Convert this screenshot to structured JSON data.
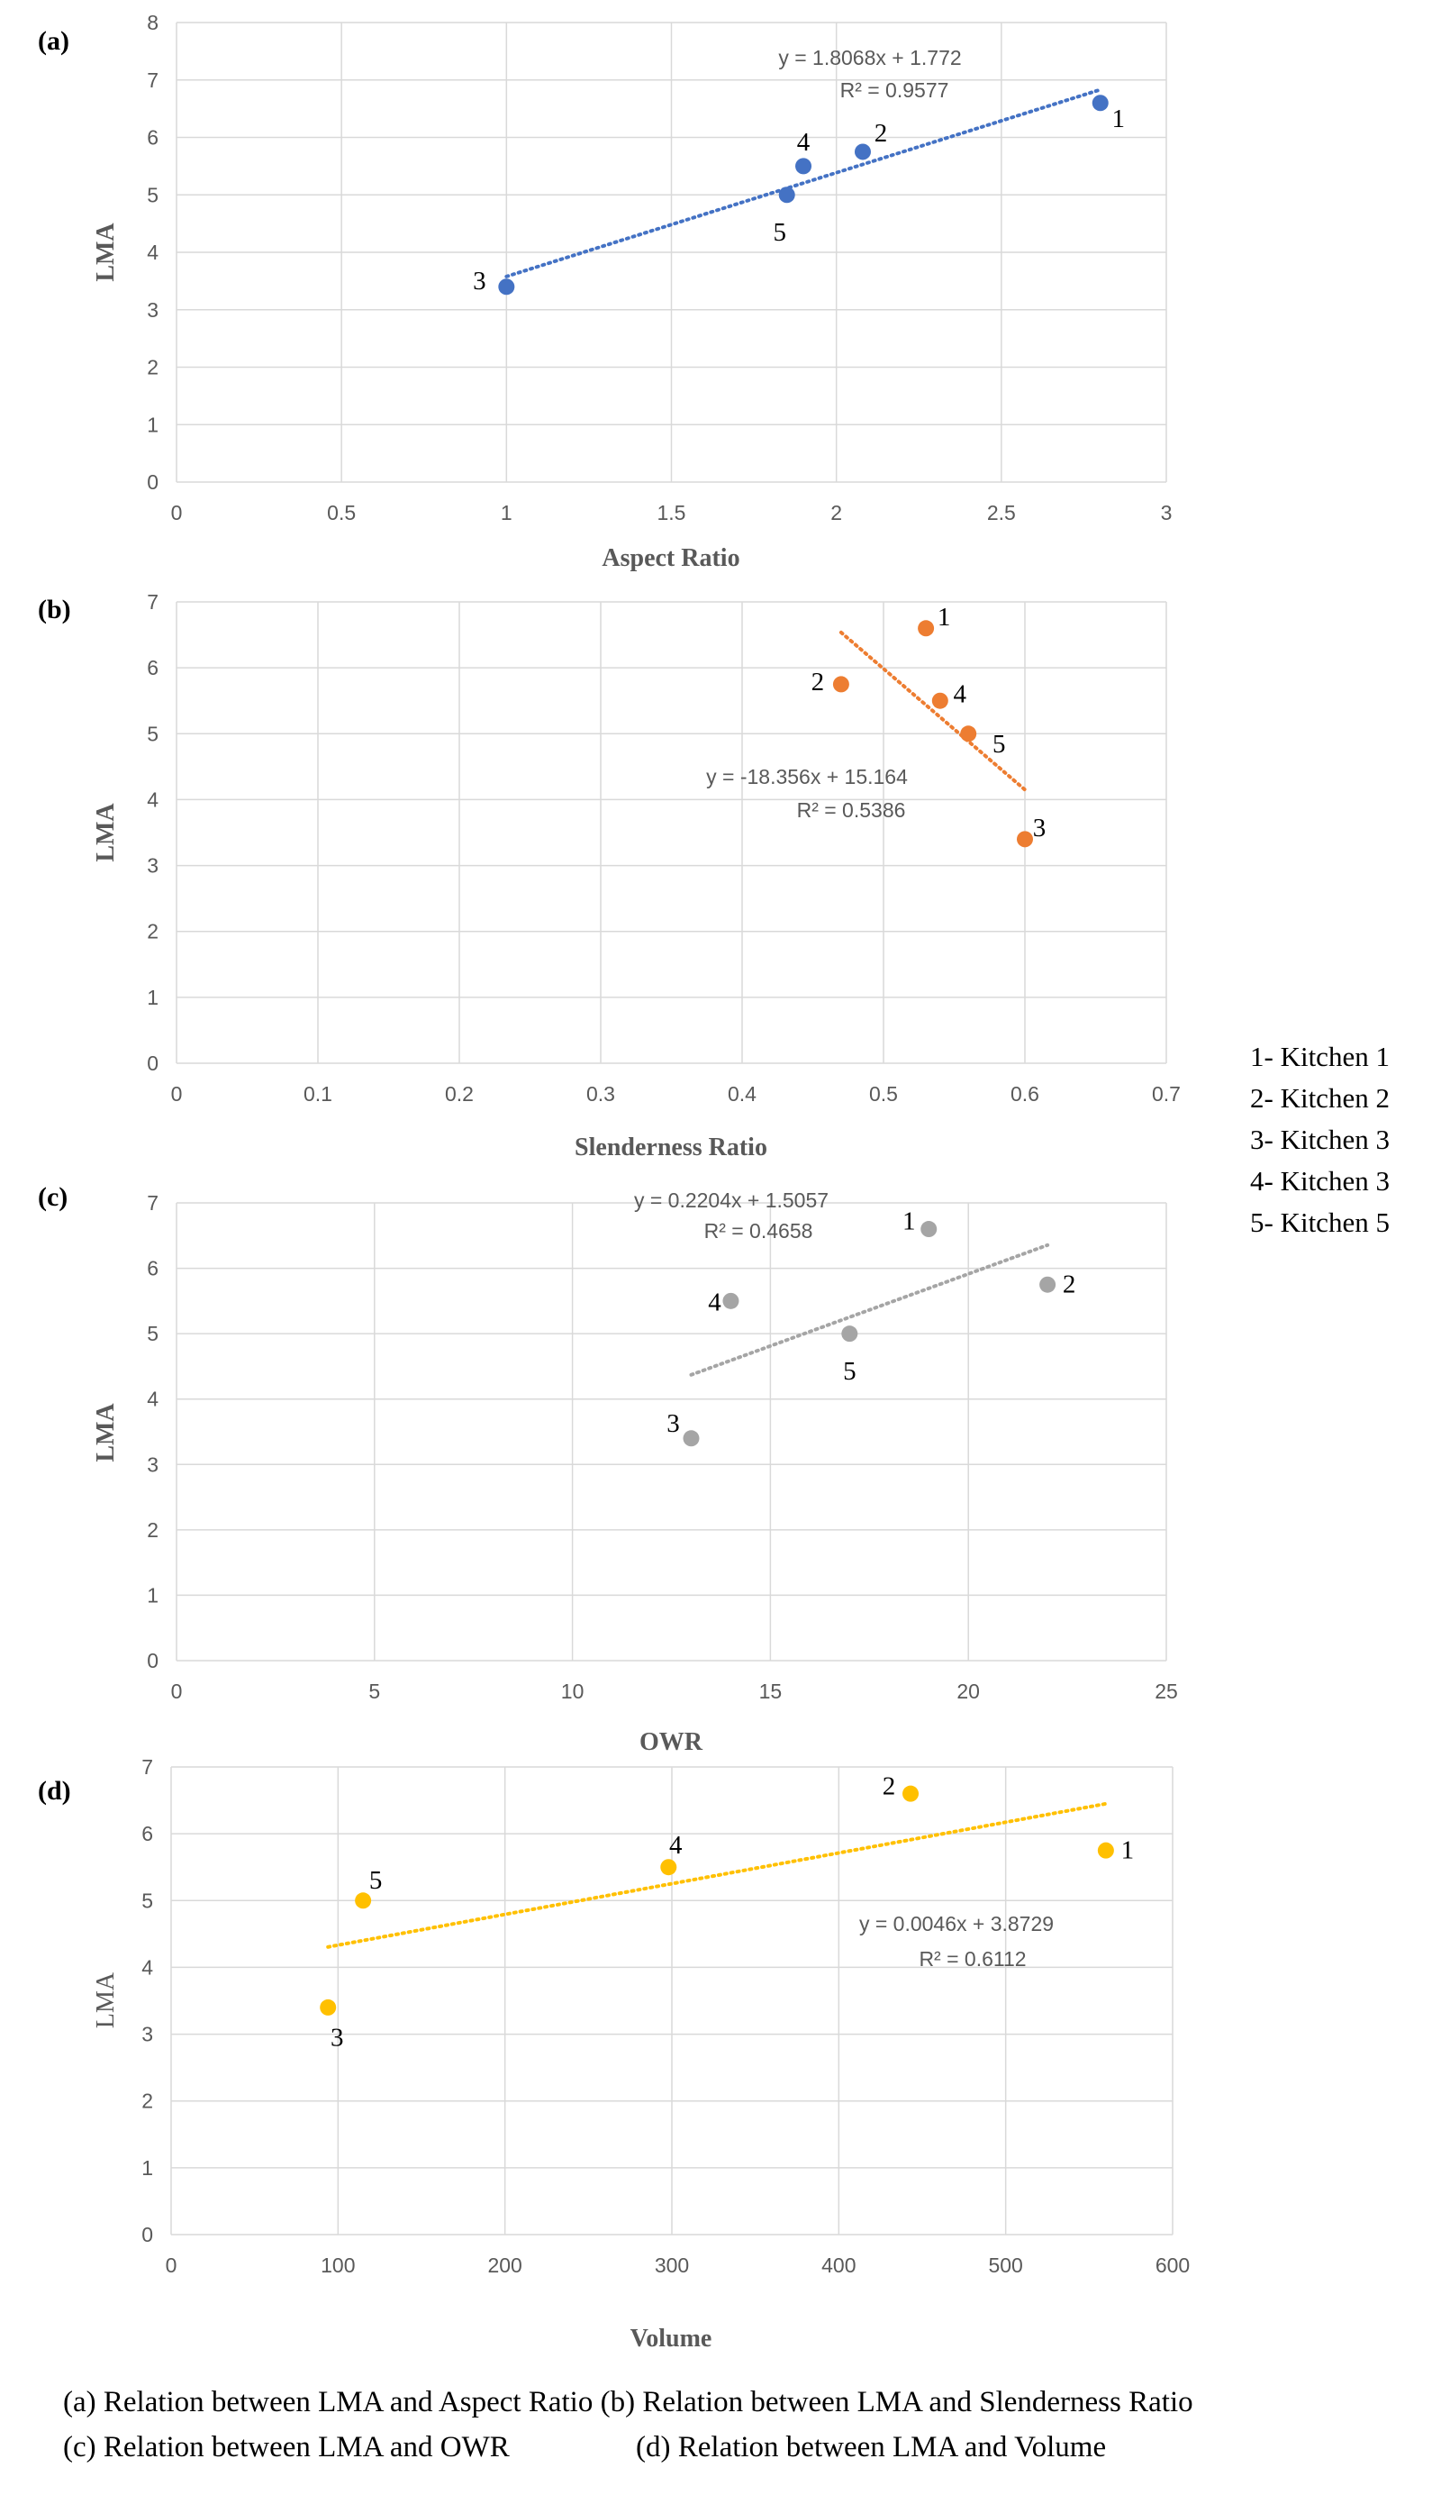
{
  "chart_data": [
    {
      "panel": "(a)",
      "type": "scatter",
      "xlabel": "Aspect Ratio",
      "ylabel": "LMA",
      "xlim": [
        0,
        3
      ],
      "xticks": [
        0,
        0.5,
        1,
        1.5,
        2,
        2.5,
        3
      ],
      "ylim": [
        0,
        8
      ],
      "yticks": [
        0,
        1,
        2,
        3,
        4,
        5,
        6,
        7,
        8
      ],
      "color": "#4472C4",
      "points": [
        {
          "label": "1",
          "x": 2.8,
          "y": 6.6
        },
        {
          "label": "2",
          "x": 2.08,
          "y": 5.75
        },
        {
          "label": "3",
          "x": 1.0,
          "y": 3.4
        },
        {
          "label": "4",
          "x": 1.9,
          "y": 5.5
        },
        {
          "label": "5",
          "x": 1.85,
          "y": 5.0
        }
      ],
      "trendline": {
        "slope": 1.8068,
        "intercept": 1.772,
        "x_range": [
          1.0,
          2.8
        ]
      },
      "equation": "y = 1.8068x + 1.772",
      "r2": "R² = 0.9577"
    },
    {
      "panel": "(b)",
      "type": "scatter",
      "xlabel": "Slenderness Ratio",
      "ylabel": "LMA",
      "xlim": [
        0,
        0.7
      ],
      "xticks": [
        0,
        0.1,
        0.2,
        0.3,
        0.4,
        0.5,
        0.6,
        0.7
      ],
      "ylim": [
        0,
        7
      ],
      "yticks": [
        0,
        1,
        2,
        3,
        4,
        5,
        6,
        7
      ],
      "color": "#ED7D31",
      "points": [
        {
          "label": "1",
          "x": 0.53,
          "y": 6.6
        },
        {
          "label": "2",
          "x": 0.47,
          "y": 5.75
        },
        {
          "label": "3",
          "x": 0.6,
          "y": 3.4
        },
        {
          "label": "4",
          "x": 0.54,
          "y": 5.5
        },
        {
          "label": "5",
          "x": 0.56,
          "y": 5.0
        }
      ],
      "trendline": {
        "slope": -18.356,
        "intercept": 15.164,
        "x_range": [
          0.47,
          0.6
        ]
      },
      "equation": "y = -18.356x + 15.164",
      "r2": "R² = 0.5386"
    },
    {
      "panel": "(c)",
      "type": "scatter",
      "xlabel": "OWR",
      "ylabel": "LMA",
      "xlim": [
        0,
        25
      ],
      "xticks": [
        0,
        5,
        10,
        15,
        20,
        25
      ],
      "ylim": [
        0,
        7
      ],
      "yticks": [
        0,
        1,
        2,
        3,
        4,
        5,
        6,
        7
      ],
      "color": "#A5A5A5",
      "points": [
        {
          "label": "1",
          "x": 19,
          "y": 6.6
        },
        {
          "label": "2",
          "x": 22,
          "y": 5.75
        },
        {
          "label": "3",
          "x": 13,
          "y": 3.4
        },
        {
          "label": "4",
          "x": 14,
          "y": 5.5
        },
        {
          "label": "5",
          "x": 17,
          "y": 5.0
        }
      ],
      "trendline": {
        "slope": 0.2204,
        "intercept": 1.5057,
        "x_range": [
          13,
          22
        ]
      },
      "equation": "y = 0.2204x + 1.5057",
      "r2": "R² = 0.4658"
    },
    {
      "panel": "(d)",
      "type": "scatter",
      "xlabel": "Volume",
      "ylabel": "LMA",
      "xlim": [
        0,
        600
      ],
      "xticks": [
        0,
        100,
        200,
        300,
        400,
        500,
        600
      ],
      "ylim": [
        0,
        7
      ],
      "yticks": [
        0,
        1,
        2,
        3,
        4,
        5,
        6,
        7
      ],
      "color": "#FFC000",
      "points": [
        {
          "label": "1",
          "x": 560,
          "y": 5.75
        },
        {
          "label": "2",
          "x": 443,
          "y": 6.6
        },
        {
          "label": "3",
          "x": 94,
          "y": 3.4
        },
        {
          "label": "4",
          "x": 298,
          "y": 5.5
        },
        {
          "label": "5",
          "x": 115,
          "y": 5.0
        }
      ],
      "trendline": {
        "slope": 0.0046,
        "intercept": 3.8729,
        "x_range": [
          94,
          560
        ]
      },
      "equation": "y = 0.0046x + 3.8729",
      "r2": "R² = 0.6112"
    }
  ],
  "legend": [
    "1- Kitchen 1",
    "2- Kitchen 2",
    "3- Kitchen 3",
    "4- Kitchen 3",
    "5- Kitchen 5"
  ],
  "captions": {
    "line1": "(a) Relation between LMA and Aspect Ratio (b) Relation between LMA and Slenderness Ratio",
    "line2": "(c) Relation between LMA and OWR                 (d) Relation between LMA and Volume"
  }
}
